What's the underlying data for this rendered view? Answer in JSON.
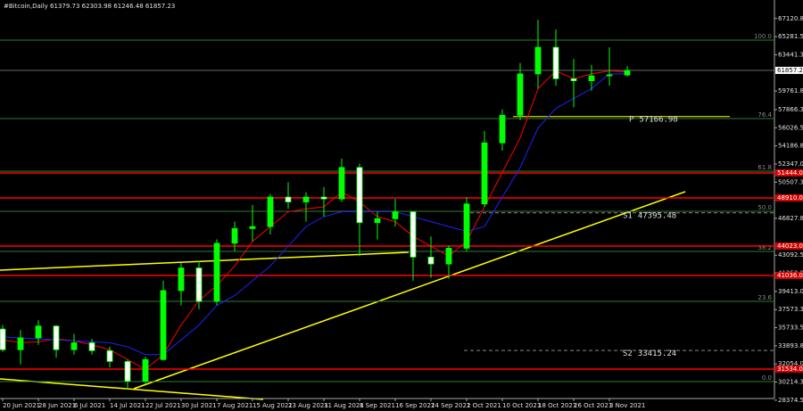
{
  "chart_data": {
    "type": "candlestick",
    "title": "#Bitcoin,Daily  61379.73 62303.98 61246.48 61857.23",
    "categories": [
      "20 Jun 2021",
      null,
      "28 Jun 2021",
      null,
      "6 Jul 2021",
      null,
      "14 Jul 2021",
      null,
      "22 Jul 2021",
      null,
      "30 Jul 2021",
      null,
      "7 Aug 2021",
      null,
      "15 Aug 2021",
      null,
      "23 Aug 2021",
      null,
      "31 Aug 2021",
      null,
      "8 Sep 2021",
      null,
      "16 Sep 2021",
      null,
      "24 Sep 2021",
      null,
      "2 Oct 2021",
      null,
      "10 Oct 2021",
      null,
      "18 Oct 2021",
      null,
      "26 Oct 2021",
      null,
      "3 Nov 2021",
      null
    ],
    "open": [
      35600,
      33500,
      34700,
      35900,
      33500,
      34200,
      33400,
      32300,
      30300,
      32500,
      39500,
      41800,
      38400,
      44300,
      45800,
      46000,
      49000,
      48500,
      49000,
      48800,
      52000,
      46400,
      46800,
      47500,
      42900,
      42200,
      43800,
      48300,
      54500,
      57300,
      61500,
      64200,
      61000,
      60800,
      61300,
      61379.73
    ],
    "high": [
      36000,
      35500,
      36500,
      36000,
      35100,
      34600,
      33800,
      32500,
      32800,
      40500,
      42300,
      42500,
      44700,
      46500,
      48200,
      49300,
      50500,
      49500,
      50000,
      52900,
      52400,
      47500,
      48800,
      47600,
      45000,
      44100,
      49000,
      55700,
      57900,
      62600,
      67000,
      66000,
      63000,
      62400,
      64200,
      62303.98
    ],
    "low": [
      33300,
      32000,
      34000,
      32700,
      33000,
      33000,
      31700,
      29500,
      30000,
      32400,
      38000,
      37600,
      38000,
      43500,
      44500,
      45200,
      47800,
      46500,
      47000,
      48500,
      43000,
      44700,
      46000,
      40500,
      40800,
      40700,
      43500,
      48000,
      53700,
      56800,
      60000,
      60300,
      58100,
      59800,
      60300,
      61246.48
    ],
    "close": [
      33500,
      34700,
      35900,
      33500,
      34200,
      33400,
      32300,
      30300,
      32500,
      39500,
      41800,
      38400,
      44300,
      45800,
      46000,
      49000,
      48500,
      49000,
      48800,
      52000,
      46400,
      46800,
      47500,
      42900,
      42200,
      43800,
      48300,
      54500,
      57300,
      61500,
      64200,
      61000,
      60800,
      61300,
      61400,
      61857.23
    ],
    "bull_color": "#00ff00",
    "bear_color": "#ffffff",
    "lines": [
      {
        "color": "#ff0000",
        "values": [
          34500,
          34200,
          34300,
          34600,
          34400,
          34000,
          33500,
          32500,
          31500,
          33000,
          36000,
          38500,
          40000,
          42000,
          44500,
          46000,
          47500,
          47800,
          48000,
          49500,
          48500,
          47000,
          46500,
          45000,
          44000,
          43000,
          44500,
          48000,
          51500,
          55000,
          60000,
          61800,
          61000,
          61500,
          61800,
          61700
        ]
      },
      {
        "color": "#2020ff",
        "values": [
          34800,
          34700,
          34600,
          34500,
          34400,
          34300,
          34200,
          33800,
          33000,
          33000,
          34500,
          36000,
          38000,
          39000,
          40500,
          42000,
          44000,
          46000,
          47000,
          47500,
          47500,
          47500,
          47500,
          47000,
          46500,
          46000,
          45500,
          46000,
          49000,
          52000,
          56000,
          58000,
          59000,
          60000,
          61500,
          61500
        ]
      }
    ],
    "ylim": [
      28000,
      69000
    ],
    "yticks": [
      {
        "value": 67120.8,
        "label": "67120.80"
      },
      {
        "value": 65281.55,
        "label": "65281.55"
      },
      {
        "value": 63441.3,
        "label": "63441.30"
      },
      {
        "value": 59761.8,
        "label": "59761.80"
      },
      {
        "value": 57866.3,
        "label": "57866.30"
      },
      {
        "value": 56026.55,
        "label": "56026.55"
      },
      {
        "value": 54186.8,
        "label": "54186.80"
      },
      {
        "value": 52347.05,
        "label": "52347.05"
      },
      {
        "value": 50507.3,
        "label": "50507.30"
      },
      {
        "value": 46827.8,
        "label": "46827.80"
      },
      {
        "value": 43092.55,
        "label": "43092.55"
      },
      {
        "value": 41252.8,
        "label": "41252.80"
      },
      {
        "value": 39413.05,
        "label": "39413.05"
      },
      {
        "value": 37573.3,
        "label": "37573.30"
      },
      {
        "value": 35733.55,
        "label": "35733.55"
      },
      {
        "value": 33893.8,
        "label": "33893.80"
      },
      {
        "value": 32054.05,
        "label": "32054.05"
      },
      {
        "value": 30214.3,
        "label": "30214.30"
      },
      {
        "value": 28374.55,
        "label": "28374.55"
      }
    ],
    "levels": [
      {
        "value": 51444,
        "label": "51444.00"
      },
      {
        "value": 48910,
        "label": "48910.00"
      },
      {
        "value": 44023,
        "label": "44023.00"
      },
      {
        "value": 41036,
        "label": "41036.00"
      },
      {
        "value": 31534,
        "label": "31534.00"
      }
    ],
    "fib_levels": [
      {
        "label": "100.0",
        "price": 64928
      },
      {
        "label": "76.4",
        "price": 56964
      },
      {
        "label": "61.8",
        "price": 51624
      },
      {
        "label": "50.0",
        "price": 47552
      },
      {
        "label": "38.2",
        "price": 43480
      },
      {
        "label": "23.6",
        "price": 38412
      },
      {
        "label": "0.0",
        "price": 30267
      }
    ],
    "pivots": [
      {
        "label": "P",
        "value": 57166.98
      },
      {
        "label": "S1",
        "value": 47395.48
      },
      {
        "label": "S2",
        "value": 33415.24
      }
    ],
    "current_price": 61857.23
  }
}
